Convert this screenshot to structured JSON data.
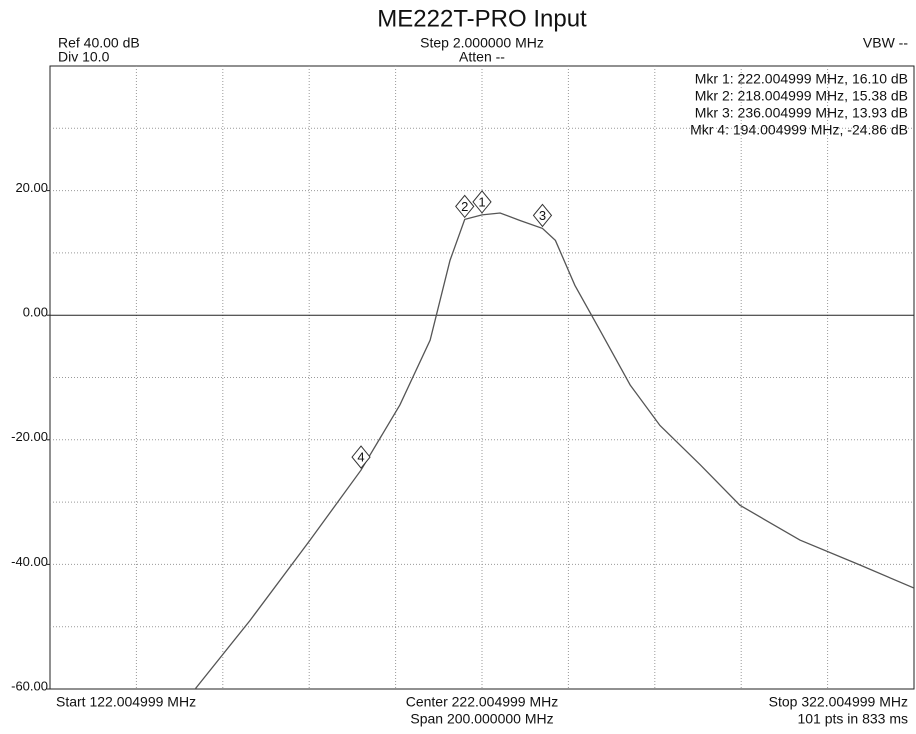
{
  "chart_data": {
    "type": "line",
    "title": "ME222T-PRO Input",
    "header": {
      "ref": "Ref 40.00 dB",
      "div": "Div 10.0",
      "step": "Step 2.000000 MHz",
      "atten": "Atten --",
      "vbw": "VBW --"
    },
    "footer": {
      "start": "Start 122.004999 MHz",
      "center": "Center 222.004999 MHz",
      "span": "Span 200.000000 MHz",
      "stop": "Stop 322.004999 MHz",
      "points": "101 pts in 833 ms"
    },
    "xlim": [
      122.004999,
      322.004999
    ],
    "ylim": [
      -60,
      40
    ],
    "yticks": [
      {
        "value": 20,
        "label": "20.00"
      },
      {
        "value": 0,
        "label": "0.00"
      },
      {
        "value": -20,
        "label": "-20.00"
      },
      {
        "value": -40,
        "label": "-40.00"
      },
      {
        "value": -60,
        "label": "-60.00"
      }
    ],
    "xgrid": [
      142.004999,
      162.004999,
      182.004999,
      202.004999,
      222.004999,
      242.004999,
      262.004999,
      282.004999,
      302.004999
    ],
    "ygrid": [
      30,
      20,
      10,
      0,
      -10,
      -20,
      -30,
      -40,
      -50
    ],
    "series": [
      {
        "name": "Trace",
        "color": "#555555",
        "x": [
          155.6,
          168.3,
          182.2,
          194.004999,
          203.0,
          210.0,
          214.6,
          218.004999,
          222.004999,
          226.2,
          230.8,
          236.004999,
          239.0,
          243.5,
          249.3,
          256.3,
          263.2,
          272.5,
          281.7,
          295.6,
          309.5,
          322.0
        ],
        "values": [
          -60,
          -49,
          -36.1,
          -24.86,
          -14.4,
          -4,
          8.8,
          15.38,
          16.1,
          16.4,
          15.2,
          13.93,
          12,
          4.8,
          -2.4,
          -11.2,
          -17.7,
          -24,
          -30.5,
          -36.1,
          -40.1,
          -43.8
        ]
      }
    ],
    "markers": [
      {
        "name": "1",
        "x": 222.004999,
        "y": 16.1,
        "label": "Mkr 1: 222.004999 MHz, 16.10 dB"
      },
      {
        "name": "2",
        "x": 218.004999,
        "y": 15.38,
        "label": "Mkr 2: 218.004999 MHz, 15.38 dB"
      },
      {
        "name": "3",
        "x": 236.004999,
        "y": 13.93,
        "label": "Mkr 3: 236.004999 MHz, 13.93 dB"
      },
      {
        "name": "4",
        "x": 194.004999,
        "y": -24.86,
        "label": "Mkr 4: 194.004999 MHz, -24.86 dB"
      }
    ]
  }
}
